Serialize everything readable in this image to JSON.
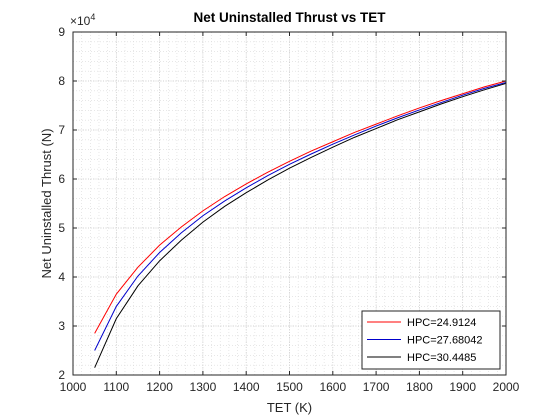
{
  "chart_data": {
    "type": "line",
    "title": "Net Uninstalled Thrust vs TET",
    "xlabel": "TET (K)",
    "ylabel": "Net Uninstalled Thrust (N)",
    "y_exponent_label": "×10",
    "y_exponent_power": "4",
    "xlim": [
      1000,
      2000
    ],
    "ylim": [
      2,
      9
    ],
    "xticks": [
      "1000",
      "1100",
      "1200",
      "1300",
      "1400",
      "1500",
      "1600",
      "1700",
      "1800",
      "1900",
      "2000"
    ],
    "yticks": [
      "2",
      "3",
      "4",
      "5",
      "6",
      "7",
      "8",
      "9"
    ],
    "grid": "on (major and minor, dotted)",
    "legend_position": "bottom-right",
    "x": [
      1050,
      1100,
      1150,
      1200,
      1250,
      1300,
      1350,
      1400,
      1450,
      1500,
      1550,
      1600,
      1650,
      1700,
      1750,
      1800,
      1850,
      1900,
      1950,
      2000
    ],
    "series": [
      {
        "name": "HPC=24.9124",
        "color": "#ff0000",
        "values": [
          2.85,
          3.65,
          4.2,
          4.65,
          5.02,
          5.35,
          5.64,
          5.9,
          6.14,
          6.36,
          6.57,
          6.76,
          6.95,
          7.12,
          7.29,
          7.45,
          7.6,
          7.74,
          7.88,
          8.0
        ]
      },
      {
        "name": "HPC=27.68042",
        "color": "#0000cc",
        "values": [
          2.5,
          3.4,
          4.02,
          4.5,
          4.9,
          5.25,
          5.55,
          5.82,
          6.07,
          6.3,
          6.51,
          6.71,
          6.9,
          7.08,
          7.25,
          7.41,
          7.56,
          7.71,
          7.85,
          7.97
        ]
      },
      {
        "name": "HPC=30.4485",
        "color": "#000000",
        "values": [
          2.15,
          3.15,
          3.82,
          4.33,
          4.75,
          5.12,
          5.44,
          5.72,
          5.98,
          6.22,
          6.44,
          6.65,
          6.85,
          7.03,
          7.21,
          7.37,
          7.53,
          7.68,
          7.82,
          7.95
        ]
      }
    ]
  }
}
